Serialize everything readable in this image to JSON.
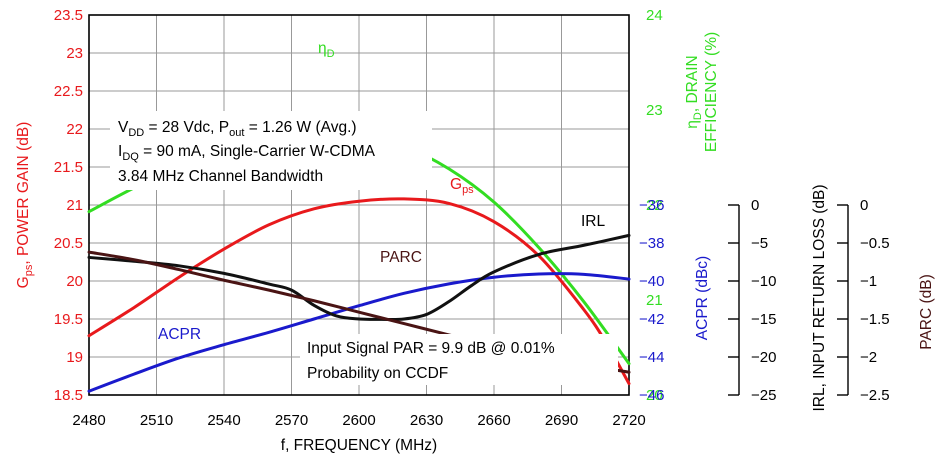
{
  "chart_data": {
    "type": "line",
    "x": {
      "label": "f, FREQUENCY (MHz)",
      "range": [
        2480,
        2720
      ],
      "ticks": [
        "2480",
        "2510",
        "2540",
        "2570",
        "2600",
        "2630",
        "2660",
        "2690",
        "2720"
      ]
    },
    "axes": {
      "gain": {
        "label_main": "G",
        "label_sub": "ps",
        "label_rest": ", POWER GAIN (dB)",
        "color": "#e8191c",
        "range": [
          18.5,
          23.5
        ],
        "ticks": [
          "18.5",
          "19",
          "19.5",
          "20",
          "20.5",
          "21",
          "21.5",
          "22",
          "22.5",
          "23",
          "23.5"
        ]
      },
      "efficiency": {
        "label_symbol": "η",
        "label_sub": "D",
        "label_line1_rest": ", DRAIN",
        "label_line2": "EFFICIENCY (%)",
        "color": "#33dd22",
        "range": [
          20,
          24
        ],
        "ticks": [
          "20",
          "21",
          "22",
          "23",
          "24"
        ]
      },
      "acpr": {
        "label": "ACPR (dBc)",
        "color": "#1a1acc",
        "range": [
          -46,
          -36
        ],
        "ticks": [
          "−46",
          "−44",
          "−42",
          "−40",
          "−38",
          "−36"
        ]
      },
      "irl": {
        "label": "IRL, INPUT RETURN LOSS (dB)",
        "color": "#000000",
        "range": [
          -25,
          0
        ],
        "ticks": [
          "−25",
          "−20",
          "−15",
          "−10",
          "−5",
          "0"
        ]
      },
      "parc": {
        "label": "PARC (dB)",
        "color": "#4a1414",
        "range": [
          -2.5,
          0
        ],
        "ticks": [
          "−2.5",
          "−2",
          "−1.5",
          "−1",
          "−0.5",
          "0"
        ]
      }
    },
    "series": [
      {
        "name": "ηD",
        "axis": "efficiency",
        "color": "#33dd22",
        "points": [
          [
            2480,
            21.93
          ],
          [
            2500,
            22.18
          ],
          [
            2520,
            22.4
          ],
          [
            2540,
            22.58
          ],
          [
            2560,
            22.72
          ],
          [
            2580,
            22.78
          ],
          [
            2600,
            22.75
          ],
          [
            2620,
            22.62
          ],
          [
            2640,
            22.38
          ],
          [
            2660,
            22.03
          ],
          [
            2680,
            21.55
          ],
          [
            2700,
            20.98
          ],
          [
            2720,
            20.33
          ]
        ]
      },
      {
        "name": "Gps",
        "axis": "gain",
        "color": "#e8191c",
        "points": [
          [
            2480,
            19.28
          ],
          [
            2500,
            19.65
          ],
          [
            2520,
            20.05
          ],
          [
            2540,
            20.42
          ],
          [
            2560,
            20.74
          ],
          [
            2580,
            20.95
          ],
          [
            2600,
            21.05
          ],
          [
            2620,
            21.08
          ],
          [
            2640,
            21.02
          ],
          [
            2660,
            20.78
          ],
          [
            2680,
            20.33
          ],
          [
            2700,
            19.62
          ],
          [
            2710,
            19.18
          ],
          [
            2720,
            18.65
          ]
        ]
      },
      {
        "name": "ACPR",
        "axis": "acpr",
        "color": "#1a1acc",
        "points": [
          [
            2480,
            -45.8
          ],
          [
            2500,
            -44.9
          ],
          [
            2520,
            -44.05
          ],
          [
            2540,
            -43.35
          ],
          [
            2560,
            -42.7
          ],
          [
            2580,
            -42.0
          ],
          [
            2600,
            -41.3
          ],
          [
            2620,
            -40.65
          ],
          [
            2640,
            -40.15
          ],
          [
            2660,
            -39.8
          ],
          [
            2680,
            -39.63
          ],
          [
            2700,
            -39.65
          ],
          [
            2720,
            -39.9
          ]
        ]
      },
      {
        "name": "IRL",
        "axis": "irl",
        "color": "#111111",
        "points": [
          [
            2480,
            -6.9
          ],
          [
            2500,
            -7.4
          ],
          [
            2520,
            -8.0
          ],
          [
            2540,
            -9.0
          ],
          [
            2560,
            -10.4
          ],
          [
            2570,
            -11.2
          ],
          [
            2580,
            -13.2
          ],
          [
            2590,
            -14.6
          ],
          [
            2600,
            -15.0
          ],
          [
            2610,
            -15.05
          ],
          [
            2620,
            -15.0
          ],
          [
            2630,
            -14.4
          ],
          [
            2640,
            -12.7
          ],
          [
            2650,
            -10.6
          ],
          [
            2660,
            -8.8
          ],
          [
            2680,
            -6.5
          ],
          [
            2700,
            -5.3
          ],
          [
            2720,
            -4.0
          ]
        ]
      },
      {
        "name": "PARC",
        "axis": "parc",
        "color": "#4a1414",
        "points": [
          [
            2480,
            -0.62
          ],
          [
            2500,
            -0.72
          ],
          [
            2520,
            -0.85
          ],
          [
            2540,
            -0.99
          ],
          [
            2560,
            -1.12
          ],
          [
            2580,
            -1.26
          ],
          [
            2600,
            -1.41
          ],
          [
            2620,
            -1.56
          ],
          [
            2640,
            -1.71
          ],
          [
            2660,
            -1.85
          ],
          [
            2680,
            -1.98
          ],
          [
            2700,
            -2.1
          ],
          [
            2720,
            -2.2
          ]
        ]
      }
    ],
    "annotations": {
      "cond_line1": {
        "p1": "V",
        "p1_sub": "DD",
        "p2": " = 28 Vdc, P",
        "p2_sub": "out",
        "p3": " = 1.26 W (Avg.)"
      },
      "cond_line2": {
        "p1": "I",
        "p1_sub": "DQ",
        "p2": " = 90 mA, Single-Carrier W-CDMA"
      },
      "cond_line3": "3.84 MHz Channel Bandwidth",
      "signal_line1": "Input Signal PAR = 9.9 dB @ 0.01%",
      "signal_line2": "Probability on CCDF"
    },
    "curve_labels": {
      "eta_symbol": "η",
      "eta_sub": "D",
      "gps_main": "G",
      "gps_sub": "ps",
      "irl": "IRL",
      "parc": "PARC",
      "acpr": "ACPR"
    },
    "grid": true
  }
}
